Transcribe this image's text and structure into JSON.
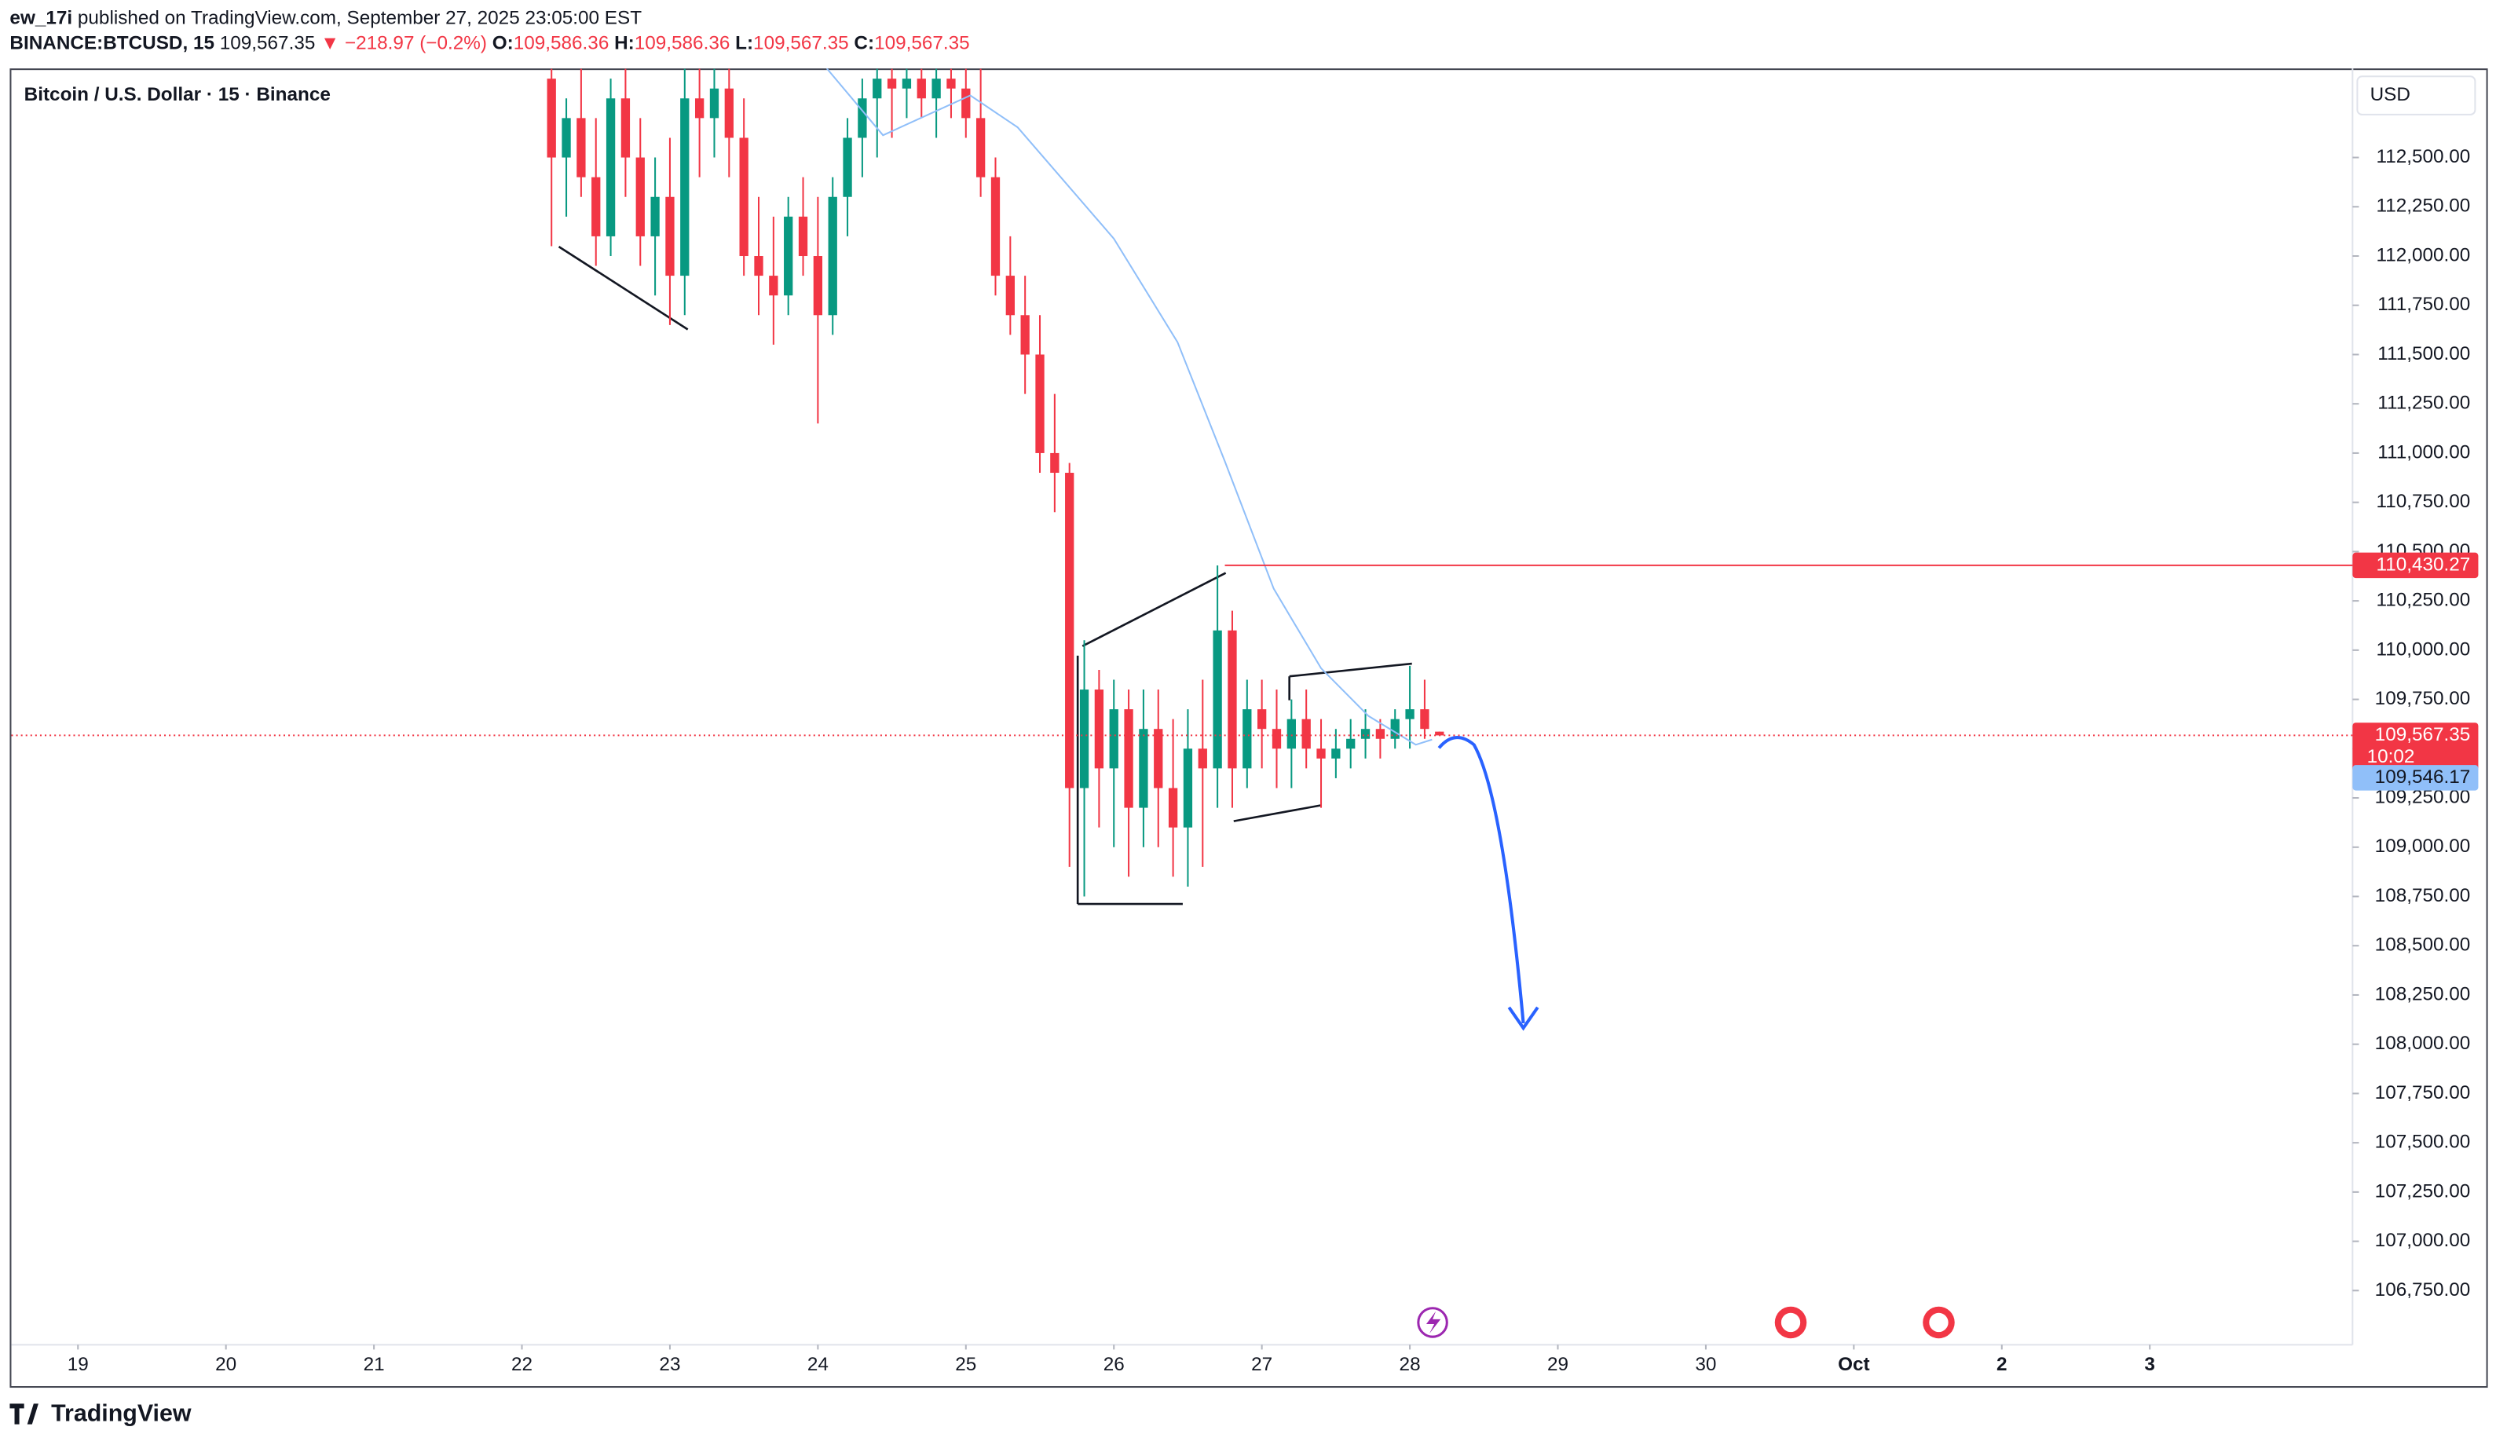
{
  "header": {
    "author": "ew_17i",
    "published": "published on TradingView.com, September 27, 2025 23:05:00 EST",
    "symbol": "BINANCE:BTCUSD, 15",
    "last": "109,567.35",
    "arrow": "▼",
    "change": "−218.97 (−0.2%)",
    "o_label": "O:",
    "o": "109,586.36",
    "h_label": "H:",
    "h": "109,586.36",
    "l_label": "L:",
    "l": "109,567.35",
    "c_label": "C:",
    "c": "109,567.35"
  },
  "footer": {
    "brand": "TradingView"
  },
  "chart_data": {
    "type": "candlestick",
    "title": "Bitcoin / U.S. Dollar · 15 · Binance",
    "currency": "USD",
    "x": [
      22.2,
      22.3,
      22.4,
      22.5,
      22.6,
      22.7,
      22.8,
      22.9,
      23.0,
      23.1,
      23.2,
      23.3,
      23.4,
      23.5,
      23.6,
      23.7,
      23.8,
      23.9,
      24.0,
      24.1,
      24.2,
      24.3,
      24.4,
      24.5,
      24.6,
      24.7,
      24.8,
      24.9,
      25.0,
      25.1,
      25.2,
      25.3,
      25.4,
      25.5,
      25.6,
      25.7,
      25.8,
      25.9,
      26.0,
      26.1,
      26.2,
      26.3,
      26.4,
      26.5,
      26.6,
      26.7,
      26.8,
      26.9,
      27.0,
      27.1,
      27.2,
      27.3,
      27.4,
      27.5,
      27.6,
      27.7,
      27.8,
      27.9,
      28.0,
      28.1,
      28.2
    ],
    "open": [
      112900,
      112500,
      112700,
      112400,
      112100,
      112800,
      112500,
      112100,
      112300,
      111900,
      112800,
      112700,
      112850,
      112600,
      112000,
      111900,
      111800,
      112200,
      112000,
      111700,
      112300,
      112600,
      112800,
      112900,
      112850,
      112900,
      112800,
      112900,
      112850,
      112700,
      112400,
      111900,
      111700,
      111500,
      111000,
      110900,
      109300,
      109800,
      109400,
      109700,
      109200,
      109600,
      109300,
      109100,
      109500,
      109400,
      110100,
      109400,
      109700,
      109600,
      109500,
      109650,
      109500,
      109450,
      109500,
      109550,
      109600,
      109550,
      109650,
      109700,
      109586.36
    ],
    "high": [
      112950,
      112800,
      112950,
      112700,
      112900,
      112950,
      112700,
      112500,
      112600,
      112950,
      112950,
      112950,
      112950,
      112800,
      112300,
      112200,
      112300,
      112400,
      112300,
      112400,
      112700,
      112900,
      112950,
      112950,
      112950,
      112950,
      112950,
      112950,
      112950,
      112950,
      112500,
      112100,
      111900,
      111700,
      111300,
      110950,
      110050,
      109900,
      109850,
      109800,
      109800,
      109800,
      109650,
      109700,
      109850,
      110430,
      110200,
      109850,
      109850,
      109800,
      109750,
      109800,
      109650,
      109600,
      109650,
      109700,
      109650,
      109700,
      109920,
      109850,
      109586.36
    ],
    "low": [
      112050,
      112200,
      112300,
      111950,
      112000,
      112300,
      111950,
      111800,
      111650,
      111700,
      112400,
      112500,
      112400,
      111900,
      111700,
      111550,
      111700,
      111900,
      111150,
      111600,
      112100,
      112400,
      112500,
      112600,
      112700,
      112700,
      112600,
      112700,
      112600,
      112300,
      111800,
      111600,
      111300,
      110900,
      110700,
      108900,
      108750,
      109100,
      109000,
      108850,
      109000,
      109000,
      108850,
      108800,
      108900,
      109200,
      109200,
      109300,
      109400,
      109300,
      109300,
      109400,
      109200,
      109350,
      109400,
      109450,
      109450,
      109500,
      109500,
      109550,
      109567.35
    ],
    "close": [
      112500,
      112700,
      112400,
      112100,
      112800,
      112500,
      112100,
      112300,
      111900,
      112800,
      112700,
      112850,
      112600,
      112000,
      111900,
      111800,
      112200,
      112000,
      111700,
      112300,
      112600,
      112800,
      112900,
      112850,
      112900,
      112800,
      112900,
      112850,
      112700,
      112400,
      111900,
      111700,
      111500,
      111000,
      110900,
      109300,
      109800,
      109400,
      109700,
      109200,
      109600,
      109300,
      109100,
      109500,
      109400,
      110100,
      109400,
      109700,
      109600,
      109500,
      109650,
      109500,
      109450,
      109500,
      109550,
      109600,
      109550,
      109650,
      109700,
      109600,
      109567.35
    ],
    "up_color": "#089981",
    "down_color": "#f23645",
    "ma": {
      "color": "#90bff9",
      "x": [
        24.06,
        24.44,
        25.03,
        25.35,
        26.0,
        26.43,
        26.75,
        27.08,
        27.4,
        27.72,
        28.04,
        28.15
      ],
      "values": [
        112952,
        112613,
        112815,
        112653,
        112088,
        111563,
        110958,
        110312,
        109908,
        109666,
        109520,
        109546.17
      ],
      "last_label": "109,546.17"
    },
    "level": {
      "value": 110430.27,
      "label": "110,430.27",
      "start": 26.75,
      "color": "#f23645"
    },
    "last": {
      "value": 109567.35,
      "label": "109,567.35",
      "countdown": "10:02",
      "color": "#f23645"
    },
    "xlim": [
      18.55,
      34.37
    ],
    "xticks": [
      19,
      20,
      21,
      22,
      23,
      24,
      25,
      26,
      27,
      28,
      29,
      30,
      {
        "value": 31,
        "label": "Oct"
      },
      {
        "value": 32,
        "label": "2"
      },
      {
        "value": 33,
        "label": "3"
      }
    ],
    "ylim": [
      106475,
      112952
    ],
    "yticks": [
      {
        "value": 106750,
        "label": "106,750.00"
      },
      {
        "value": 107000,
        "label": "107,000.00"
      },
      {
        "value": 107250,
        "label": "107,250.00"
      },
      {
        "value": 107500,
        "label": "107,500.00"
      },
      {
        "value": 107750,
        "label": "107,750.00"
      },
      {
        "value": 108000,
        "label": "108,000.00"
      },
      {
        "value": 108250,
        "label": "108,250.00"
      },
      {
        "value": 108500,
        "label": "108,500.00"
      },
      {
        "value": 108750,
        "label": "108,750.00"
      },
      {
        "value": 109000,
        "label": "109,000.00"
      },
      {
        "value": 109250,
        "label": "109,250.00"
      },
      {
        "value": 109500,
        "label": "109,500.00"
      },
      {
        "value": 109750,
        "label": "109,750.00"
      },
      {
        "value": 110000,
        "label": "110,000.00"
      },
      {
        "value": 110250,
        "label": "110,250.00"
      },
      {
        "value": 110500,
        "label": "110,500.00"
      },
      {
        "value": 110750,
        "label": "110,750.00"
      },
      {
        "value": 111000,
        "label": "111,000.00"
      },
      {
        "value": 111250,
        "label": "111,250.00"
      },
      {
        "value": 111500,
        "label": "111,500.00"
      },
      {
        "value": 111750,
        "label": "111,750.00"
      },
      {
        "value": 112000,
        "label": "112,000.00"
      },
      {
        "value": 112250,
        "label": "112,250.00"
      },
      {
        "value": 112500,
        "label": "112,500.00"
      }
    ],
    "grid": false
  }
}
